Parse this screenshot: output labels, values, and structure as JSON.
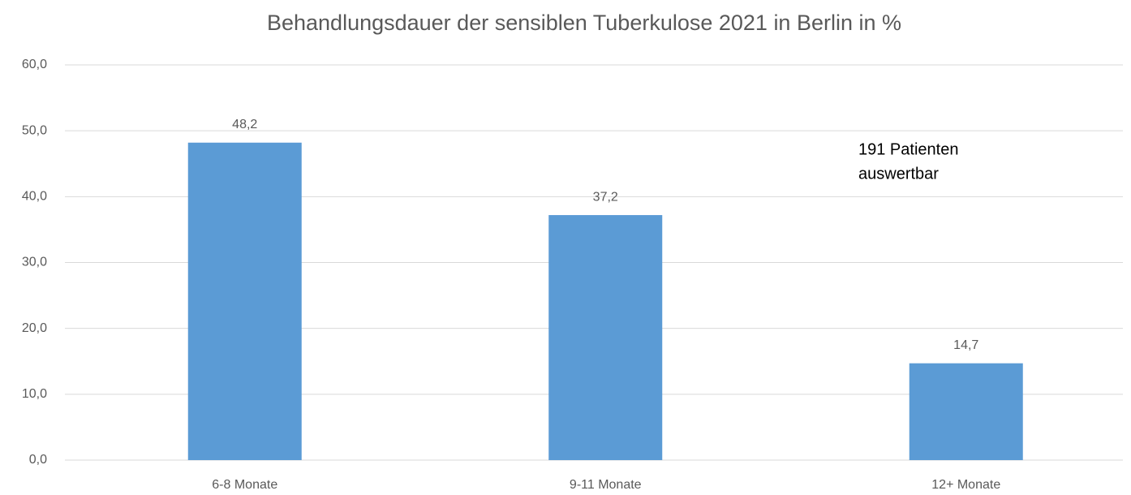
{
  "chart_data": {
    "type": "bar",
    "title": "Behandlungsdauer der sensiblen Tuberkulose 2021 in Berlin in %",
    "categories": [
      "6-8 Monate",
      "9-11 Monate",
      "12+ Monate"
    ],
    "values": [
      48.2,
      37.2,
      14.7
    ],
    "value_labels": [
      "48,2",
      "37,2",
      "14,7"
    ],
    "color": "#5b9bd5",
    "ylim": [
      0,
      60
    ],
    "yticks": [
      {
        "value": 0,
        "label": "0,0"
      },
      {
        "value": 10,
        "label": "10,0"
      },
      {
        "value": 20,
        "label": "20,0"
      },
      {
        "value": 30,
        "label": "30,0"
      },
      {
        "value": 40,
        "label": "40,0"
      },
      {
        "value": 50,
        "label": "50,0"
      },
      {
        "value": 60,
        "label": "60,0"
      }
    ],
    "grid": true,
    "annotation": [
      "191 Patienten",
      "auswertbar"
    ]
  }
}
